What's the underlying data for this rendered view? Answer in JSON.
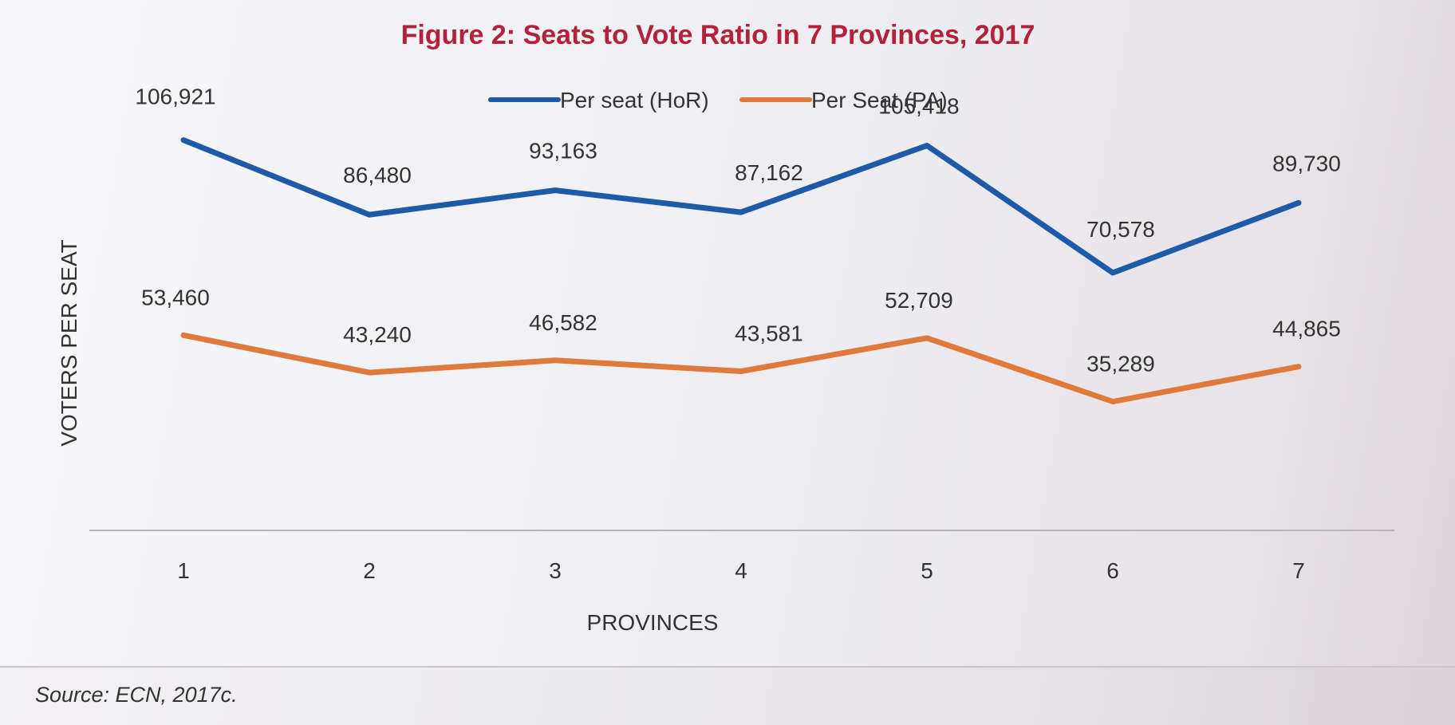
{
  "source_note": "Source: ECN, 2017c.",
  "chart_data": {
    "type": "line",
    "title": "Figure 2: Seats to Vote Ratio in 7 Provinces, 2017",
    "xlabel": "PROVINCES",
    "ylabel": "VOTERS PER SEAT",
    "categories": [
      "1",
      "2",
      "3",
      "4",
      "5",
      "6",
      "7"
    ],
    "ylim": [
      0,
      130000
    ],
    "grid": false,
    "legend_position": "top-center",
    "series": [
      {
        "name": "Per seat (HoR)",
        "color": "#1f5aa8",
        "values": [
          106921,
          86480,
          93163,
          87162,
          105418,
          70578,
          89730
        ],
        "labels": [
          "106,921",
          "86,480",
          "93,163",
          "87,162",
          "105,418",
          "70,578",
          "89,730"
        ]
      },
      {
        "name": "Per Seat (PA)",
        "color": "#e07a3c",
        "values": [
          53460,
          43240,
          46582,
          43581,
          52709,
          35289,
          44865
        ],
        "labels": [
          "53,460",
          "43,240",
          "46,582",
          "43,581",
          "52,709",
          "35,289",
          "44,865"
        ]
      }
    ],
    "title_color": "#b3223a"
  }
}
